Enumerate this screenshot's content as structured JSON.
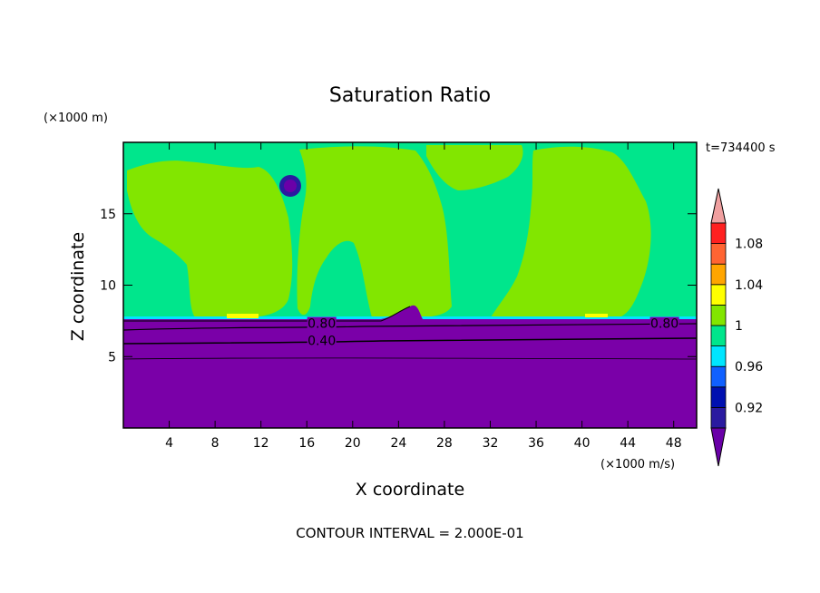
{
  "chart_data": {
    "type": "heatmap",
    "title": "Saturation Ratio",
    "time_label": "t=734400 s",
    "xlabel": "X coordinate",
    "ylabel": "Z coordinate",
    "x_unit": "(×1000 m/s)",
    "y_unit": "(×1000 m)",
    "footer": "CONTOUR INTERVAL = 2.000E-01",
    "x_range": [
      0,
      50
    ],
    "y_range": [
      0,
      20
    ],
    "x_ticks": [
      4,
      8,
      12,
      16,
      20,
      24,
      28,
      32,
      36,
      40,
      44,
      48
    ],
    "y_ticks": [
      5,
      10,
      15
    ],
    "contour_labels": [
      {
        "text": "0.80",
        "x": 17.3,
        "z": 7.2
      },
      {
        "text": "0.40",
        "x": 17.3,
        "z": 6.0
      },
      {
        "text": "0.80",
        "x": 47.2,
        "z": 7.2
      }
    ],
    "colorbar": {
      "levels": [
        {
          "color": "#6a00a8"
        },
        {
          "color": "#2a1aa0"
        },
        {
          "color": "#0010b0"
        },
        {
          "color": "#1060ff"
        },
        {
          "color": "#00e6ff"
        },
        {
          "color": "#00e68c"
        },
        {
          "color": "#82e600"
        },
        {
          "color": "#ffff00"
        },
        {
          "color": "#ffa500"
        },
        {
          "color": "#ff6432"
        },
        {
          "color": "#ff2020"
        },
        {
          "color": "#f0a0a0"
        }
      ],
      "tick_labels": [
        "0.92",
        "0.96",
        "1",
        "1.04",
        "1.08"
      ]
    },
    "regions": {
      "stable_layer_top_z": 7.6,
      "colors": {
        "dry": "#7a00a8",
        "near_saturated": "#00e68c",
        "supersaturated": "#82e600",
        "cyan_edge": "#00e6ff",
        "yellow_patch": "#ffff00"
      }
    }
  }
}
